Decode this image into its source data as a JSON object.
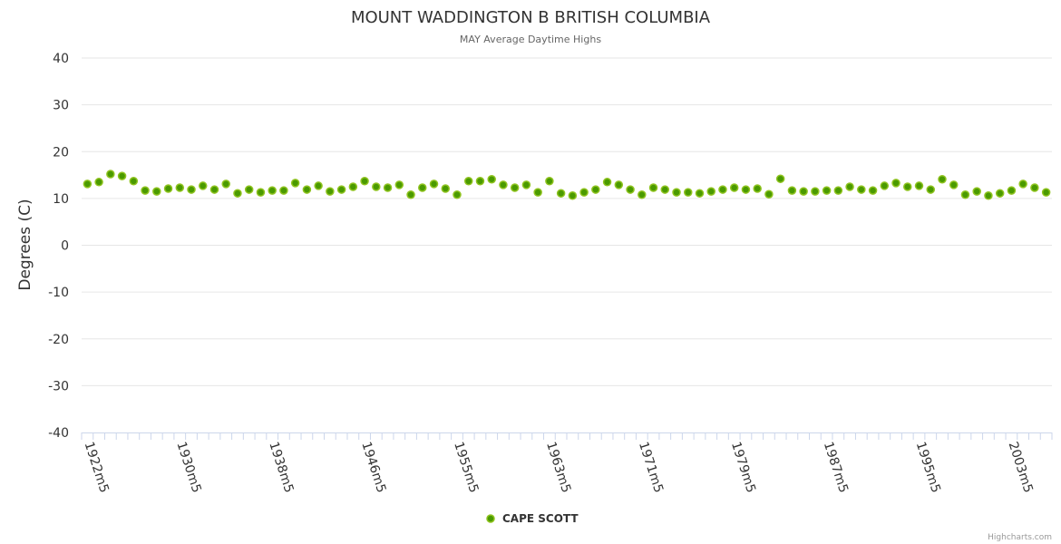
{
  "chart_data": {
    "type": "scatter",
    "title": "MOUNT WADDINGTON B BRITISH COLUMBIA",
    "subtitle": "MAY Average Daytime Highs",
    "xlabel": "",
    "ylabel": "Degrees (C)",
    "ylim": [
      -40,
      40
    ],
    "yticks": [
      40,
      30,
      20,
      10,
      0,
      -10,
      -20,
      -30,
      -40
    ],
    "xtick_labels": [
      "1922m5",
      "1930m5",
      "1938m5",
      "1946m5",
      "1955m5",
      "1963m5",
      "1971m5",
      "1979m5",
      "1987m5",
      "1995m5",
      "2003m5"
    ],
    "xtick_every": 8,
    "grid": true,
    "legend": "bottom-center",
    "credits": "Highcharts.com",
    "colors": {
      "marker_fill": "#4a9a00",
      "marker_stroke": "#8fc31f",
      "grid": "#e6e6e6",
      "axis": "#ccd6eb"
    },
    "categories": [
      "1922m5",
      "1923m5",
      "1924m5",
      "1925m5",
      "1926m5",
      "1927m5",
      "1928m5",
      "1929m5",
      "1930m5",
      "1931m5",
      "1932m5",
      "1933m5",
      "1934m5",
      "1935m5",
      "1936m5",
      "1937m5",
      "1938m5",
      "1939m5",
      "1940m5",
      "1941m5",
      "1942m5",
      "1943m5",
      "1944m5",
      "1945m5",
      "1946m5",
      "1947m5",
      "1948m5",
      "1949m5",
      "1951m5",
      "1952m5",
      "1953m5",
      "1954m5",
      "1955m5",
      "1956m5",
      "1957m5",
      "1958m5",
      "1959m5",
      "1960m5",
      "1961m5",
      "1962m5",
      "1963m5",
      "1964m5",
      "1965m5",
      "1966m5",
      "1967m5",
      "1968m5",
      "1969m5",
      "1970m5",
      "1971m5",
      "1972m5",
      "1973m5",
      "1974m5",
      "1975m5",
      "1976m5",
      "1977m5",
      "1978m5",
      "1979m5",
      "1980m5",
      "1981m5",
      "1982m5",
      "1983m5",
      "1984m5",
      "1985m5",
      "1986m5",
      "1987m5",
      "1988m5",
      "1989m5",
      "1990m5",
      "1991m5",
      "1992m5",
      "1993m5",
      "1994m5",
      "1995m5",
      "1996m5",
      "1997m5",
      "1998m5",
      "1999m5",
      "2000m5",
      "2001m5",
      "2002m5",
      "2003m5",
      "2004m5",
      "2005m5",
      "2006m5"
    ],
    "series": [
      {
        "name": "CAPE SCOTT",
        "values": [
          13.1,
          13.5,
          15.2,
          14.8,
          13.7,
          11.7,
          11.5,
          12.1,
          12.3,
          11.9,
          12.7,
          11.9,
          13.1,
          11.1,
          11.9,
          11.3,
          11.7,
          11.7,
          13.3,
          11.9,
          12.7,
          11.5,
          11.9,
          12.5,
          13.7,
          12.5,
          12.3,
          12.9,
          10.8,
          12.3,
          13.1,
          12.1,
          10.8,
          13.7,
          13.7,
          14.1,
          12.9,
          12.3,
          12.9,
          11.3,
          13.7,
          11.1,
          10.6,
          11.3,
          11.9,
          13.5,
          12.9,
          11.9,
          10.8,
          12.3,
          11.9,
          11.3,
          11.3,
          11.1,
          11.5,
          11.9,
          12.3,
          11.9,
          12.1,
          10.9,
          14.2,
          11.7,
          11.5,
          11.5,
          11.7,
          11.7,
          12.5,
          11.9,
          11.7,
          12.7,
          13.3,
          12.5,
          12.7,
          11.9,
          14.1,
          12.9,
          10.8,
          11.5,
          10.6,
          11.1,
          11.7,
          13.1,
          12.3,
          11.3
        ]
      }
    ]
  }
}
